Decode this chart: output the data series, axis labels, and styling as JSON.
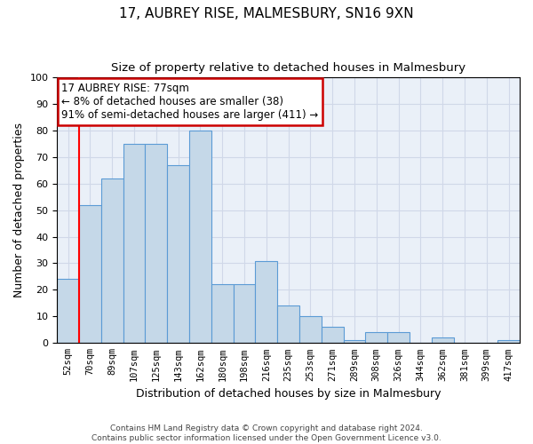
{
  "title": "17, AUBREY RISE, MALMESBURY, SN16 9XN",
  "subtitle": "Size of property relative to detached houses in Malmesbury",
  "xlabel": "Distribution of detached houses by size in Malmesbury",
  "ylabel": "Number of detached properties",
  "categories": [
    "52sqm",
    "70sqm",
    "89sqm",
    "107sqm",
    "125sqm",
    "143sqm",
    "162sqm",
    "180sqm",
    "198sqm",
    "216sqm",
    "235sqm",
    "253sqm",
    "271sqm",
    "289sqm",
    "308sqm",
    "326sqm",
    "344sqm",
    "362sqm",
    "381sqm",
    "399sqm",
    "417sqm"
  ],
  "values": [
    24,
    52,
    62,
    75,
    75,
    67,
    80,
    22,
    22,
    31,
    14,
    10,
    6,
    1,
    4,
    4,
    0,
    2,
    0,
    0,
    1
  ],
  "bar_color": "#c5d8e8",
  "bar_edge_color": "#5b9bd5",
  "red_line_x": 1.0,
  "annotation_text": "17 AUBREY RISE: 77sqm\n← 8% of detached houses are smaller (38)\n91% of semi-detached houses are larger (411) →",
  "annotation_box_color": "#ffffff",
  "annotation_box_edge_color": "#cc0000",
  "ylim": [
    0,
    100
  ],
  "yticks": [
    0,
    10,
    20,
    30,
    40,
    50,
    60,
    70,
    80,
    90,
    100
  ],
  "grid_color": "#d0d8e8",
  "background_color": "#eaf0f8",
  "footnote1": "Contains HM Land Registry data © Crown copyright and database right 2024.",
  "footnote2": "Contains public sector information licensed under the Open Government Licence v3.0."
}
